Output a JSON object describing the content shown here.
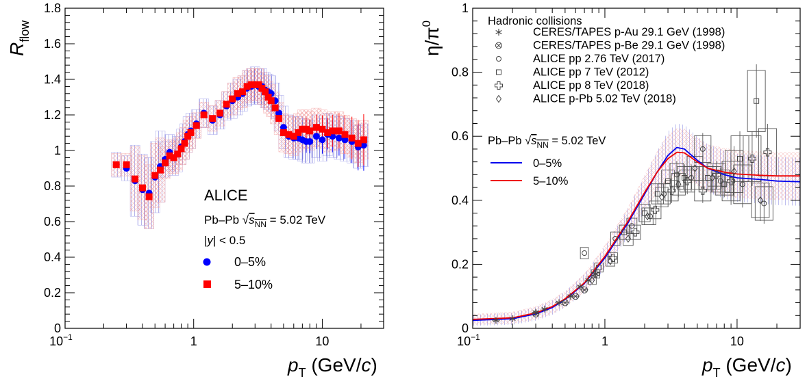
{
  "chart_data": [
    {
      "type": "scatter",
      "xscale": "log",
      "xlim": [
        0.1,
        30
      ],
      "ylim": [
        0,
        1.8
      ],
      "xlabel": {
        "main": "p",
        "sub": "T",
        "unit_pre": " (GeV/",
        "unit_var": "c",
        "unit_post": ")"
      },
      "ylabel": {
        "main": "R",
        "sub": "flow"
      },
      "xticks": [
        {
          "value": 0.1,
          "label": "10",
          "sup": "−1"
        },
        {
          "value": 1,
          "label": "1",
          "sup": ""
        },
        {
          "value": 10,
          "label": "10",
          "sup": ""
        }
      ],
      "yticks": [
        {
          "value": 0,
          "label": "0"
        },
        {
          "value": 0.2,
          "label": "0.2"
        },
        {
          "value": 0.4,
          "label": "0.4"
        },
        {
          "value": 0.6,
          "label": "0.6"
        },
        {
          "value": 0.8,
          "label": "0.8"
        },
        {
          "value": 1,
          "label": "1"
        },
        {
          "value": 1.2,
          "label": "1.2"
        },
        {
          "value": 1.4,
          "label": "1.4"
        },
        {
          "value": 1.6,
          "label": "1.6"
        },
        {
          "value": 1.8,
          "label": "1.8"
        }
      ],
      "annotations": {
        "experiment": "ALICE",
        "system_pre": "Pb–Pb  ",
        "system_var": "s",
        "system_sub": "NN",
        "system_post": " = 5.02 TeV",
        "rapidity_pre": "|",
        "rapidity_var": "y",
        "rapidity_post": "| < 0.5"
      },
      "series": [
        {
          "name": "0–5%",
          "marker": "circle",
          "color": "#0000ff",
          "points": [
            [
              0.25,
              0.92
            ],
            [
              0.3,
              0.9
            ],
            [
              0.35,
              0.83
            ],
            [
              0.4,
              0.78
            ],
            [
              0.45,
              0.76
            ],
            [
              0.5,
              0.85
            ],
            [
              0.55,
              0.91
            ],
            [
              0.6,
              0.95
            ],
            [
              0.65,
              0.99
            ],
            [
              0.7,
              0.96
            ],
            [
              0.75,
              0.98
            ],
            [
              0.8,
              1.02
            ],
            [
              0.85,
              1.05
            ],
            [
              0.9,
              1.09
            ],
            [
              0.95,
              1.11
            ],
            [
              1.05,
              1.15
            ],
            [
              1.2,
              1.21
            ],
            [
              1.4,
              1.17
            ],
            [
              1.6,
              1.2
            ],
            [
              1.8,
              1.25
            ],
            [
              2.0,
              1.28
            ],
            [
              2.2,
              1.3
            ],
            [
              2.4,
              1.32
            ],
            [
              2.6,
              1.35
            ],
            [
              2.8,
              1.36
            ],
            [
              3.0,
              1.37
            ],
            [
              3.2,
              1.36
            ],
            [
              3.4,
              1.36
            ],
            [
              3.6,
              1.34
            ],
            [
              3.8,
              1.33
            ],
            [
              4.0,
              1.32
            ],
            [
              4.3,
              1.28
            ],
            [
              4.6,
              1.21
            ],
            [
              5.0,
              1.13
            ],
            [
              5.5,
              1.08
            ],
            [
              6.0,
              1.07
            ],
            [
              6.5,
              1.07
            ],
            [
              7.0,
              1.06
            ],
            [
              7.5,
              1.05
            ],
            [
              8.0,
              1.05
            ],
            [
              9.0,
              1.08
            ],
            [
              10.0,
              1.06
            ],
            [
              11.0,
              1.09
            ],
            [
              12.0,
              1.08
            ],
            [
              13.5,
              1.07
            ],
            [
              15.0,
              1.06
            ],
            [
              17.0,
              1.05
            ],
            [
              19.0,
              1.02
            ],
            [
              21.0,
              1.03
            ]
          ]
        },
        {
          "name": "5–10%",
          "marker": "square",
          "color": "#ff0000",
          "points": [
            [
              0.25,
              0.92
            ],
            [
              0.3,
              0.92
            ],
            [
              0.35,
              0.84
            ],
            [
              0.4,
              0.79
            ],
            [
              0.45,
              0.74
            ],
            [
              0.5,
              0.86
            ],
            [
              0.55,
              0.89
            ],
            [
              0.6,
              0.93
            ],
            [
              0.65,
              0.97
            ],
            [
              0.7,
              0.96
            ],
            [
              0.75,
              0.98
            ],
            [
              0.8,
              1.01
            ],
            [
              0.85,
              1.04
            ],
            [
              0.9,
              1.08
            ],
            [
              0.95,
              1.1
            ],
            [
              1.05,
              1.14
            ],
            [
              1.2,
              1.2
            ],
            [
              1.4,
              1.18
            ],
            [
              1.6,
              1.21
            ],
            [
              1.8,
              1.26
            ],
            [
              2.0,
              1.29
            ],
            [
              2.2,
              1.32
            ],
            [
              2.4,
              1.33
            ],
            [
              2.6,
              1.36
            ],
            [
              2.8,
              1.37
            ],
            [
              3.0,
              1.37
            ],
            [
              3.2,
              1.37
            ],
            [
              3.4,
              1.35
            ],
            [
              3.6,
              1.33
            ],
            [
              3.8,
              1.3
            ],
            [
              4.0,
              1.28
            ],
            [
              4.3,
              1.24
            ],
            [
              4.6,
              1.18
            ],
            [
              5.0,
              1.1
            ],
            [
              5.5,
              1.09
            ],
            [
              6.0,
              1.08
            ],
            [
              6.5,
              1.1
            ],
            [
              7.0,
              1.12
            ],
            [
              7.5,
              1.12
            ],
            [
              8.0,
              1.11
            ],
            [
              9.0,
              1.13
            ],
            [
              10.0,
              1.12
            ],
            [
              11.0,
              1.1
            ],
            [
              12.0,
              1.11
            ],
            [
              13.5,
              1.11
            ],
            [
              15.0,
              1.09
            ],
            [
              17.0,
              1.07
            ],
            [
              19.0,
              1.04
            ],
            [
              21.0,
              1.06
            ]
          ]
        }
      ]
    },
    {
      "type": "scatter",
      "xscale": "log",
      "xlim": [
        0.1,
        30
      ],
      "ylim": [
        0,
        1.0
      ],
      "xlabel": {
        "main": "p",
        "sub": "T",
        "unit_pre": " (GeV/",
        "unit_var": "c",
        "unit_post": ")"
      },
      "ylabel": {
        "main": "η/π",
        "sup": "0"
      },
      "xticks": [
        {
          "value": 0.1,
          "label": "10",
          "sup": "−1"
        },
        {
          "value": 1,
          "label": "1",
          "sup": ""
        },
        {
          "value": 10,
          "label": "10",
          "sup": ""
        }
      ],
      "yticks": [
        {
          "value": 0,
          "label": "0"
        },
        {
          "value": 0.2,
          "label": "0.2"
        },
        {
          "value": 0.4,
          "label": "0.4"
        },
        {
          "value": 0.6,
          "label": "0.6"
        },
        {
          "value": 0.8,
          "label": "0.8"
        },
        {
          "value": 1,
          "label": "1"
        }
      ],
      "legend_title": "Hadronic collisions",
      "legend": [
        {
          "marker": "asterisk",
          "label": "CERES/TAPES p-Au 29.1 GeV (1998)"
        },
        {
          "marker": "cross-circle",
          "label": "CERES/TAPES p-Be 29.1 GeV (1998)"
        },
        {
          "marker": "open-circle",
          "label": "ALICE pp 2.76 TeV (2017)"
        },
        {
          "marker": "open-square",
          "label": "ALICE pp 7 TeV (2012)"
        },
        {
          "marker": "open-cross",
          "label": "ALICE pp 8 TeV (2018)"
        },
        {
          "marker": "open-diamond",
          "label": "ALICE p-Pb 5.02 TeV (2018)"
        }
      ],
      "model_label": {
        "pre": "Pb–Pb  ",
        "var": "s",
        "sub": "NN",
        "post": " = 5.02 TeV"
      },
      "curves": [
        {
          "name": "0–5%",
          "color": "#0000ee",
          "points": [
            [
              0.1,
              0.025
            ],
            [
              0.2,
              0.03
            ],
            [
              0.3,
              0.045
            ],
            [
              0.4,
              0.065
            ],
            [
              0.5,
              0.09
            ],
            [
              0.7,
              0.14
            ],
            [
              1.0,
              0.22
            ],
            [
              1.5,
              0.33
            ],
            [
              2.0,
              0.42
            ],
            [
              2.5,
              0.49
            ],
            [
              3.0,
              0.54
            ],
            [
              3.5,
              0.565
            ],
            [
              4.0,
              0.56
            ],
            [
              5.0,
              0.525
            ],
            [
              6.0,
              0.5
            ],
            [
              8.0,
              0.48
            ],
            [
              10.0,
              0.47
            ],
            [
              15.0,
              0.465
            ],
            [
              20.0,
              0.46
            ],
            [
              30.0,
              0.458
            ]
          ]
        },
        {
          "name": "5–10%",
          "color": "#ee0000",
          "points": [
            [
              0.1,
              0.028
            ],
            [
              0.2,
              0.033
            ],
            [
              0.3,
              0.048
            ],
            [
              0.4,
              0.068
            ],
            [
              0.5,
              0.092
            ],
            [
              0.7,
              0.142
            ],
            [
              1.0,
              0.225
            ],
            [
              1.5,
              0.335
            ],
            [
              2.0,
              0.425
            ],
            [
              2.5,
              0.49
            ],
            [
              3.0,
              0.53
            ],
            [
              3.5,
              0.55
            ],
            [
              4.0,
              0.548
            ],
            [
              5.0,
              0.52
            ],
            [
              6.0,
              0.5
            ],
            [
              8.0,
              0.488
            ],
            [
              10.0,
              0.482
            ],
            [
              15.0,
              0.478
            ],
            [
              20.0,
              0.476
            ],
            [
              30.0,
              0.476
            ]
          ]
        }
      ],
      "data_points": [
        {
          "set": "CERES/TAPES p-Au 29.1 GeV (1998)",
          "marker": "asterisk",
          "points": [
            [
              0.15,
              0.025
            ],
            [
              0.2,
              0.03
            ],
            [
              0.3,
              0.05
            ],
            [
              0.35,
              0.06
            ],
            [
              0.45,
              0.08
            ],
            [
              0.55,
              0.1
            ],
            [
              0.65,
              0.13
            ],
            [
              0.75,
              0.15
            ],
            [
              0.85,
              0.17
            ]
          ]
        },
        {
          "set": "CERES/TAPES p-Be 29.1 GeV (1998)",
          "marker": "cross-circle",
          "points": [
            [
              0.3,
              0.045
            ],
            [
              0.5,
              0.08
            ],
            [
              0.6,
              0.1
            ],
            [
              0.7,
              0.12
            ]
          ]
        },
        {
          "set": "ALICE pp 2.76 TeV (2017)",
          "marker": "open-circle",
          "points": [
            [
              0.7,
              0.235
            ],
            [
              1.2,
              0.28
            ],
            [
              1.6,
              0.32
            ],
            [
              2.2,
              0.35
            ],
            [
              2.8,
              0.42
            ],
            [
              3.5,
              0.48
            ],
            [
              4.5,
              0.47
            ],
            [
              5.5,
              0.56
            ],
            [
              7.5,
              0.46
            ],
            [
              11.0,
              0.45
            ],
            [
              16.0,
              0.39
            ]
          ]
        },
        {
          "set": "ALICE pp 7 TeV (2012)",
          "marker": "open-square",
          "points": [
            [
              0.9,
              0.19
            ],
            [
              1.4,
              0.3
            ],
            [
              2.0,
              0.36
            ],
            [
              2.5,
              0.42
            ],
            [
              3.0,
              0.46
            ],
            [
              4.0,
              0.47
            ],
            [
              6.0,
              0.47
            ],
            [
              8.0,
              0.45
            ],
            [
              10.5,
              0.53
            ],
            [
              14.0,
              0.71
            ]
          ]
        },
        {
          "set": "ALICE pp 8 TeV (2018)",
          "marker": "open-cross",
          "points": [
            [
              0.85,
              0.17
            ],
            [
              1.15,
              0.22
            ],
            [
              1.7,
              0.3
            ],
            [
              2.4,
              0.37
            ],
            [
              3.2,
              0.43
            ],
            [
              4.2,
              0.46
            ],
            [
              5.5,
              0.43
            ],
            [
              7.0,
              0.48
            ],
            [
              9.0,
              0.46
            ],
            [
              13.0,
              0.53
            ],
            [
              17.0,
              0.55
            ]
          ]
        },
        {
          "set": "ALICE p-Pb 5.02 TeV (2018)",
          "marker": "open-diamond",
          "points": [
            [
              0.8,
              0.15
            ],
            [
              1.1,
              0.21
            ],
            [
              1.5,
              0.28
            ],
            [
              2.1,
              0.35
            ],
            [
              2.7,
              0.41
            ],
            [
              3.6,
              0.45
            ],
            [
              4.8,
              0.5
            ],
            [
              6.5,
              0.47
            ],
            [
              9.5,
              0.49
            ],
            [
              15.0,
              0.4
            ]
          ]
        }
      ]
    }
  ],
  "legend_left": [
    {
      "label": "0–5%",
      "marker": "circle",
      "color": "#0000ff"
    },
    {
      "label": "5–10%",
      "marker": "square",
      "color": "#ff0000"
    }
  ],
  "legend_right_curves": [
    {
      "label": "0–5%",
      "color": "#0000ee"
    },
    {
      "label": "5–10%",
      "color": "#ee0000"
    }
  ]
}
